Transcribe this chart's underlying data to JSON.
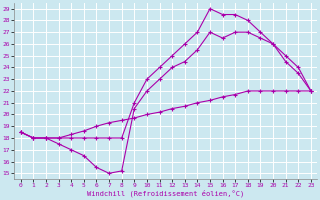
{
  "xlabel": "Windchill (Refroidissement éolien,°C)",
  "bg_color": "#cce8f0",
  "grid_color": "#ffffff",
  "line_color": "#aa00aa",
  "xlim": [
    -0.5,
    23.5
  ],
  "ylim": [
    14.5,
    29.5
  ],
  "xticks": [
    0,
    1,
    2,
    3,
    4,
    5,
    6,
    7,
    8,
    9,
    10,
    11,
    12,
    13,
    14,
    15,
    16,
    17,
    18,
    19,
    20,
    21,
    22,
    23
  ],
  "yticks": [
    15,
    16,
    17,
    18,
    19,
    20,
    21,
    22,
    23,
    24,
    25,
    26,
    27,
    28,
    29
  ],
  "curve1_x": [
    0,
    1,
    2,
    3,
    4,
    5,
    6,
    7,
    8,
    9,
    10,
    11,
    12,
    13,
    14,
    15,
    16,
    17,
    18,
    19,
    20,
    21,
    22,
    23
  ],
  "curve1_y": [
    18.5,
    18,
    18,
    18,
    18.3,
    18.6,
    19,
    19.3,
    19.5,
    19.7,
    20,
    20.2,
    20.5,
    20.7,
    21,
    21.2,
    21.5,
    21.7,
    22,
    22,
    22,
    22,
    22,
    22
  ],
  "curve2_x": [
    0,
    1,
    2,
    3,
    4,
    5,
    6,
    7,
    8,
    9,
    10,
    11,
    12,
    13,
    14,
    15,
    16,
    17,
    18,
    19,
    20,
    21,
    22,
    23
  ],
  "curve2_y": [
    18.5,
    18,
    18,
    17.5,
    17,
    16.5,
    15.5,
    15,
    15.2,
    20.5,
    22,
    23,
    24,
    24.5,
    25.5,
    27,
    26.5,
    27,
    27,
    26.5,
    26,
    24.5,
    23.5,
    22
  ],
  "curve3_x": [
    0,
    1,
    2,
    3,
    4,
    5,
    6,
    7,
    8,
    9,
    10,
    11,
    12,
    13,
    14,
    15,
    16,
    17,
    18,
    19,
    20,
    21,
    22,
    23
  ],
  "curve3_y": [
    18.5,
    18,
    18,
    18,
    18,
    18,
    18,
    18,
    18,
    21,
    23,
    24,
    25,
    26,
    27,
    29,
    28.5,
    28.5,
    28,
    27,
    26,
    25,
    24,
    22
  ]
}
